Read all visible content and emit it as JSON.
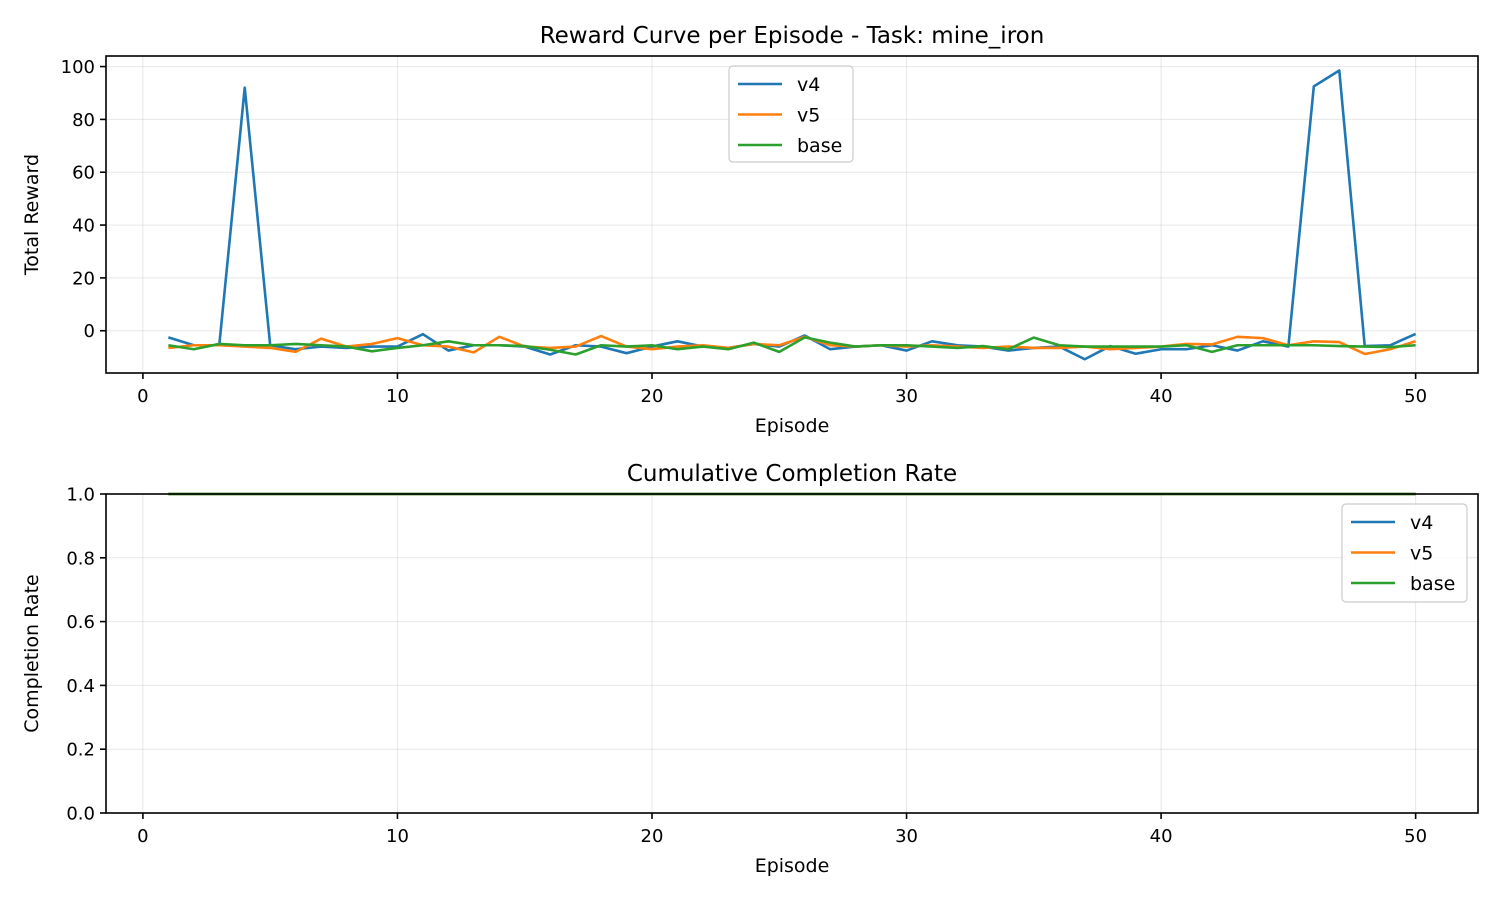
{
  "chart_data": [
    {
      "type": "line",
      "title": "Reward Curve per Episode - Task: mine_iron",
      "xlabel": "Episode",
      "ylabel": "Total Reward",
      "xlim": [
        -1.45,
        52.45
      ],
      "ylim": [
        -16,
        104
      ],
      "xticks": [
        0,
        10,
        20,
        30,
        40,
        50
      ],
      "yticks": [
        0,
        20,
        40,
        60,
        80,
        100
      ],
      "grid": true,
      "legend_position": "top-center",
      "x": [
        1,
        2,
        3,
        4,
        5,
        6,
        7,
        8,
        9,
        10,
        11,
        12,
        13,
        14,
        15,
        16,
        17,
        18,
        19,
        20,
        21,
        22,
        23,
        24,
        25,
        26,
        27,
        28,
        29,
        30,
        31,
        32,
        33,
        34,
        35,
        36,
        37,
        38,
        39,
        40,
        41,
        42,
        43,
        44,
        45,
        46,
        47,
        48,
        49,
        50
      ],
      "series": [
        {
          "name": "v4",
          "color": "#1f77b4",
          "values": [
            -2.5,
            -5.5,
            -5.5,
            92,
            -5.5,
            -7,
            -6,
            -6.5,
            -6,
            -6,
            -1.3,
            -7.5,
            -5.5,
            -5.5,
            -6,
            -9,
            -5.5,
            -6,
            -8.5,
            -6,
            -4,
            -6,
            -6.5,
            -5,
            -6,
            -1.8,
            -7,
            -6,
            -5.5,
            -7.5,
            -4,
            -5.5,
            -6,
            -7.5,
            -6.5,
            -6,
            -10.8,
            -5.8,
            -8.7,
            -7,
            -7,
            -5.5,
            -7.5,
            -4,
            -6,
            92.5,
            98.5,
            -5.8,
            -5.5,
            -1.2
          ]
        },
        {
          "name": "v5",
          "color": "#ff7f0e",
          "values": [
            -6.5,
            -5.5,
            -5.5,
            -6,
            -6.5,
            -8,
            -3,
            -6,
            -5,
            -2.8,
            -5.5,
            -6,
            -8.2,
            -2.3,
            -6,
            -6.5,
            -6,
            -2,
            -6,
            -7,
            -6,
            -5.5,
            -6.5,
            -5,
            -5.5,
            -2.3,
            -5.5,
            -6,
            -5.5,
            -6,
            -5.5,
            -6,
            -6.5,
            -6,
            -6.5,
            -6.5,
            -6,
            -7,
            -6.5,
            -6,
            -5,
            -5.2,
            -2.3,
            -2.8,
            -5.5,
            -4,
            -4.3,
            -8.8,
            -7,
            -4
          ]
        },
        {
          "name": "base",
          "color": "#2ca02c",
          "values": [
            -5.5,
            -7,
            -5,
            -5.5,
            -5.5,
            -5,
            -5.5,
            -6,
            -7.8,
            -6.5,
            -5.5,
            -4,
            -5.5,
            -5.5,
            -5.8,
            -7.2,
            -9,
            -5.5,
            -6,
            -5.5,
            -7,
            -6,
            -7,
            -4.5,
            -8,
            -2.5,
            -4.5,
            -6,
            -5.5,
            -5.5,
            -6,
            -6.5,
            -5.8,
            -7,
            -2.6,
            -5.5,
            -6,
            -6,
            -6,
            -6,
            -5.5,
            -8,
            -5.5,
            -5.5,
            -5.5,
            -5.5,
            -5.8,
            -6,
            -6.2,
            -5.5
          ]
        }
      ]
    },
    {
      "type": "line",
      "title": "Cumulative Completion Rate",
      "xlabel": "Episode",
      "ylabel": "Completion Rate",
      "xlim": [
        -1.45,
        52.45
      ],
      "ylim": [
        0,
        1
      ],
      "xticks": [
        0,
        10,
        20,
        30,
        40,
        50
      ],
      "yticks": [
        0.0,
        0.2,
        0.4,
        0.6,
        0.8,
        1.0
      ],
      "ytick_labels": [
        "0.0",
        "0.2",
        "0.4",
        "0.6",
        "0.8",
        "1.0"
      ],
      "grid": true,
      "legend_position": "top-right",
      "x": [
        1,
        50
      ],
      "series": [
        {
          "name": "v4",
          "color": "#1f77b4",
          "values": [
            1.0,
            1.0
          ]
        },
        {
          "name": "v5",
          "color": "#ff7f0e",
          "values": [
            1.0,
            1.0
          ]
        },
        {
          "name": "base",
          "color": "#2ca02c",
          "values": [
            1.0,
            1.0
          ]
        }
      ]
    }
  ]
}
